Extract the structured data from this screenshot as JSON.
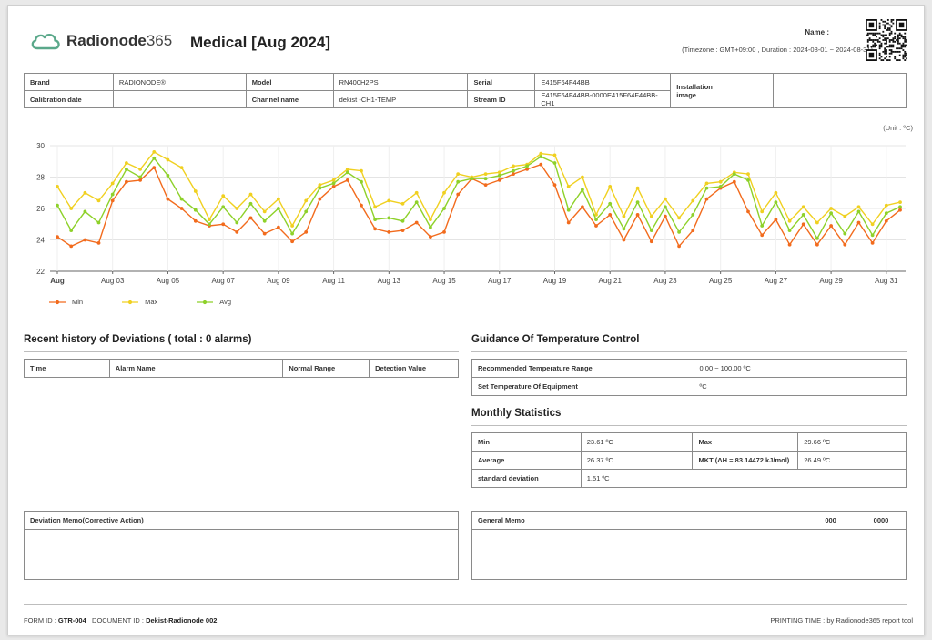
{
  "header": {
    "logo_name": "Radionode",
    "logo_num": "365",
    "title": "Medical [Aug 2024]",
    "name_label": "Name :",
    "timezone_text": "(Timezone : GMT+09:00 , Duration : 2024-08-01 ~ 2024-08-31)"
  },
  "info": {
    "brand_label": "Brand",
    "brand_value": "RADIONODE®",
    "model_label": "Model",
    "model_value": "RN400H2PS",
    "serial_label": "Serial",
    "serial_value": "E415F64F44BB",
    "installation_label_1": "Installation",
    "installation_label_2": "image",
    "calibration_label": "Calibration date",
    "calibration_value": "",
    "channel_label": "Channel name",
    "channel_value": "dekist -CH1-TEMP",
    "stream_label": "Stream ID",
    "stream_value": "E415F64F44BB-0000E415F64F44BB-CH1"
  },
  "unit_text": "(Unit : ºC)",
  "chart_data": {
    "type": "line",
    "x_tick_labels": [
      "Aug",
      "Aug 03",
      "Aug 05",
      "Aug 07",
      "Aug 09",
      "Aug 11",
      "Aug 13",
      "Aug 15",
      "Aug 17",
      "Aug 19",
      "Aug 21",
      "Aug 23",
      "Aug 25",
      "Aug 27",
      "Aug 29",
      "Aug 31"
    ],
    "y_ticks": [
      22,
      24,
      26,
      28,
      30
    ],
    "ylim": [
      22,
      30
    ],
    "x_points": 62,
    "grid": true,
    "legend_placement": "bottom-left",
    "series": [
      {
        "name": "Min",
        "color": "#f26b1d",
        "values": [
          24.2,
          23.6,
          24.0,
          23.8,
          26.5,
          27.7,
          27.8,
          28.6,
          26.6,
          26.0,
          25.2,
          24.9,
          25.0,
          24.5,
          25.4,
          24.4,
          24.8,
          23.9,
          24.5,
          26.6,
          27.4,
          27.8,
          26.2,
          24.7,
          24.5,
          24.6,
          25.1,
          24.2,
          24.5,
          26.9,
          27.9,
          27.5,
          27.8,
          28.2,
          28.5,
          28.8,
          27.5,
          25.1,
          26.1,
          24.9,
          25.6,
          24.0,
          25.6,
          23.9,
          25.5,
          23.6,
          24.6,
          26.6,
          27.3,
          27.7,
          25.8,
          24.3,
          25.3,
          23.7,
          25.0,
          23.7,
          24.9,
          23.7,
          25.1,
          23.8,
          25.2,
          25.9
        ]
      },
      {
        "name": "Max",
        "color": "#f0d020",
        "values": [
          27.4,
          26.0,
          27.0,
          26.5,
          27.6,
          28.9,
          28.5,
          29.6,
          29.1,
          28.6,
          27.1,
          25.3,
          26.8,
          26.0,
          26.9,
          25.8,
          26.6,
          24.9,
          26.5,
          27.5,
          27.8,
          28.5,
          28.4,
          26.1,
          26.5,
          26.3,
          27.0,
          25.3,
          27.0,
          28.2,
          28.0,
          28.2,
          28.3,
          28.7,
          28.8,
          29.5,
          29.4,
          27.4,
          28.0,
          25.6,
          27.4,
          25.5,
          27.3,
          25.5,
          26.6,
          25.4,
          26.5,
          27.6,
          27.7,
          28.3,
          28.2,
          25.8,
          27.0,
          25.2,
          26.1,
          25.1,
          26.0,
          25.5,
          26.1,
          25.0,
          26.2,
          26.4
        ]
      },
      {
        "name": "Avg",
        "color": "#8ed12a",
        "values": [
          26.2,
          24.6,
          25.8,
          25.1,
          26.9,
          28.5,
          28.0,
          29.2,
          28.1,
          26.6,
          25.9,
          25.0,
          26.1,
          25.1,
          26.3,
          25.2,
          26.0,
          24.4,
          25.8,
          27.3,
          27.6,
          28.3,
          27.7,
          25.3,
          25.4,
          25.2,
          26.4,
          24.8,
          26.0,
          27.7,
          27.9,
          27.9,
          28.1,
          28.4,
          28.7,
          29.3,
          28.9,
          25.9,
          27.2,
          25.3,
          26.3,
          24.7,
          26.4,
          24.6,
          26.1,
          24.5,
          25.6,
          27.3,
          27.4,
          28.2,
          27.8,
          24.9,
          26.4,
          24.6,
          25.6,
          24.1,
          25.7,
          24.4,
          25.8,
          24.3,
          25.7,
          26.1
        ]
      }
    ]
  },
  "deviations": {
    "title": "Recent history of Deviations ( total : 0 alarms)",
    "columns": [
      "Time",
      "Alarm Name",
      "Normal Range",
      "Detection Value"
    ]
  },
  "guidance": {
    "title": "Guidance Of Temperature Control",
    "rows": [
      {
        "label": "Recommended Temperature Range",
        "value": "0.00 ~ 100.00 ºC"
      },
      {
        "label": "Set Temperature Of Equipment",
        "value": "ºC"
      }
    ]
  },
  "monthly": {
    "title": "Monthly Statistics",
    "min_label": "Min",
    "min_value": "23.61 ºC",
    "max_label": "Max",
    "max_value": "29.66 ºC",
    "avg_label": "Average",
    "avg_value": "26.37 ºC",
    "mkt_label": "MKT (ΔH = 83.14472 kJ/mol)",
    "mkt_value": "26.49 ºC",
    "std_label": "standard deviation",
    "std_value": "1.51 ºC"
  },
  "memo": {
    "deviation_label": "Deviation Memo(Corrective Action)",
    "general_label": "General Memo",
    "col2": "000",
    "col3": "0000"
  },
  "footer": {
    "form_label": "FORM ID : ",
    "form_value": "GTR-004",
    "doc_label": "DOCUMENT ID : ",
    "doc_value": "Dekist-Radionode 002",
    "printing": "PRINTING TIME : by Radionode365 report tool"
  },
  "colors": {
    "min": "#f26b1d",
    "max": "#f0d020",
    "avg": "#8ed12a",
    "logo": "#5aa88a"
  }
}
